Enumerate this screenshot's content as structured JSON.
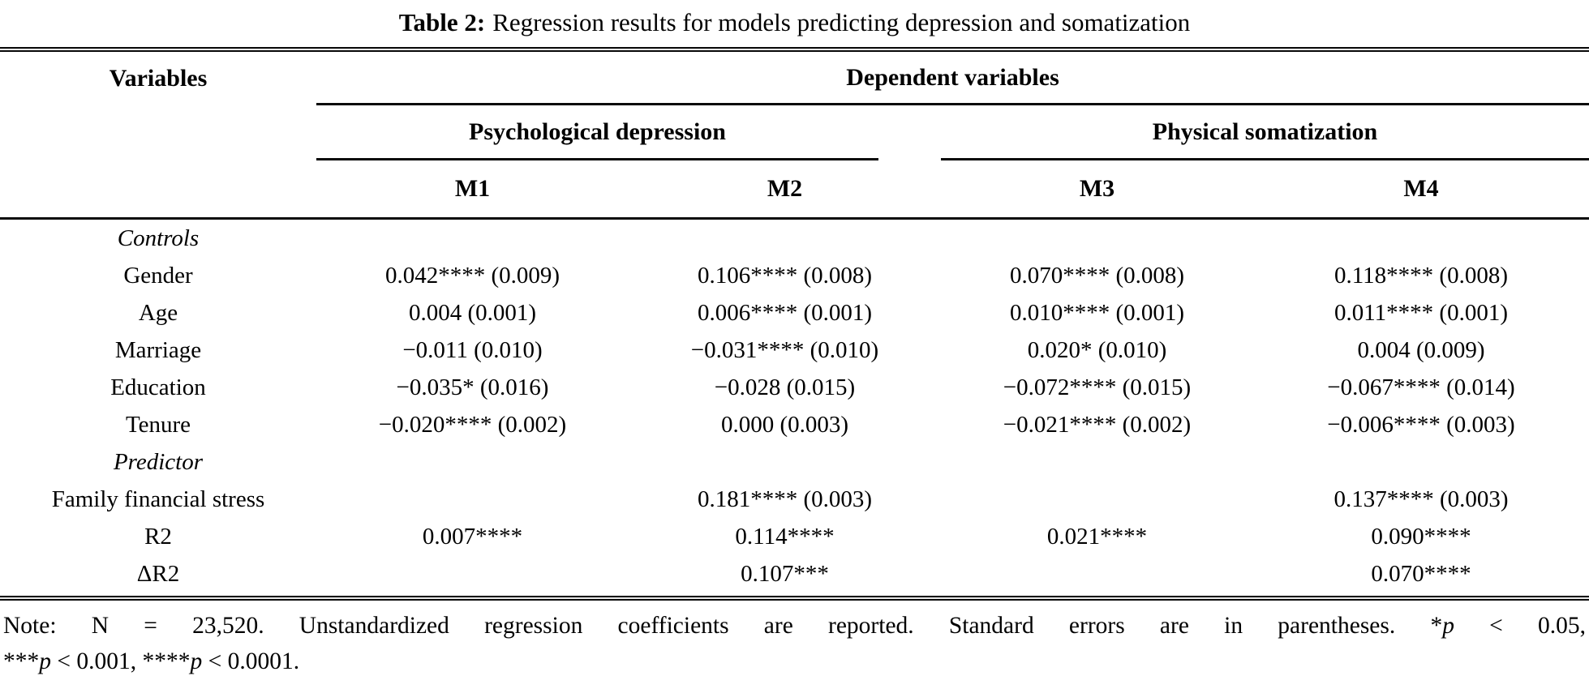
{
  "title": {
    "label": "Table 2:",
    "text": "Regression results for models predicting depression and somatization"
  },
  "table": {
    "col_header": "Variables",
    "group_header": "Dependent variables",
    "subgroups": [
      {
        "label": "Psychological depression",
        "models": [
          "M1",
          "M2"
        ]
      },
      {
        "label": "Physical somatization",
        "models": [
          "M3",
          "M4"
        ]
      }
    ],
    "rows": [
      {
        "label": "Controls",
        "style": "italic",
        "cells": [
          "",
          "",
          "",
          ""
        ]
      },
      {
        "label": "Gender",
        "style": "normal",
        "cells": [
          "0.042**** (0.009)",
          "0.106**** (0.008)",
          "0.070**** (0.008)",
          "0.118**** (0.008)"
        ]
      },
      {
        "label": "Age",
        "style": "normal",
        "cells": [
          "0.004 (0.001)",
          "0.006**** (0.001)",
          "0.010**** (0.001)",
          "0.011**** (0.001)"
        ]
      },
      {
        "label": "Marriage",
        "style": "normal",
        "cells": [
          "−0.011 (0.010)",
          "−0.031**** (0.010)",
          "0.020* (0.010)",
          "0.004 (0.009)"
        ]
      },
      {
        "label": "Education",
        "style": "normal",
        "cells": [
          "−0.035* (0.016)",
          "−0.028 (0.015)",
          "−0.072**** (0.015)",
          "−0.067**** (0.014)"
        ]
      },
      {
        "label": "Tenure",
        "style": "normal",
        "cells": [
          "−0.020**** (0.002)",
          "0.000 (0.003)",
          "−0.021**** (0.002)",
          "−0.006**** (0.003)"
        ]
      },
      {
        "label": "Predictor",
        "style": "italic",
        "cells": [
          "",
          "",
          "",
          ""
        ]
      },
      {
        "label": "Family financial stress",
        "style": "normal",
        "cells": [
          "",
          "0.181**** (0.003)",
          "",
          "0.137**** (0.003)"
        ]
      },
      {
        "label": "R2",
        "style": "normal",
        "cells": [
          "0.007****",
          "0.114****",
          "0.021****",
          "0.090****"
        ]
      },
      {
        "label": "ΔR2",
        "style": "normal",
        "cells": [
          "",
          "0.107***",
          "",
          "0.070****"
        ]
      }
    ]
  },
  "note": {
    "line1": "Note: N = 23,520. Unstandardized regression coefficients are reported. Standard errors are in parentheses. *p < 0.05,",
    "line2": "***p < 0.001, ****p < 0.0001."
  }
}
